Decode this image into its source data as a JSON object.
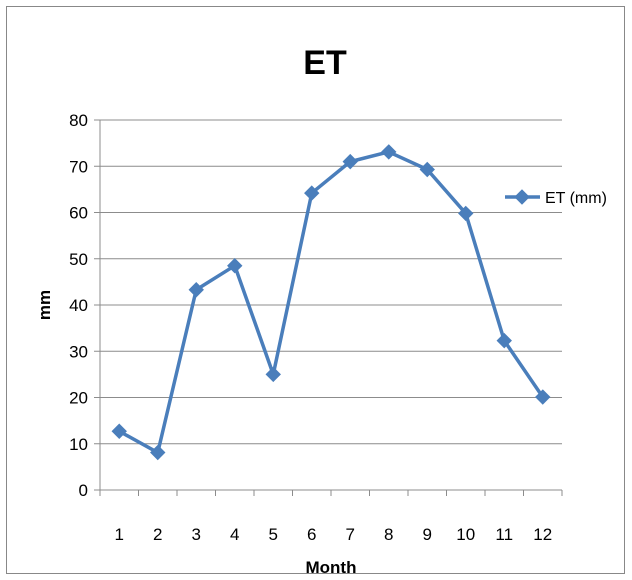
{
  "chart_data": {
    "type": "line",
    "title": "ET",
    "xlabel": "Month",
    "ylabel": "mm",
    "categories": [
      "1",
      "2",
      "3",
      "4",
      "5",
      "6",
      "7",
      "8",
      "9",
      "10",
      "11",
      "12"
    ],
    "series": [
      {
        "name": "ET (mm)",
        "color": "#4a7ebb",
        "marker": "diamond",
        "values": [
          12.7,
          8.1,
          43.3,
          48.5,
          25.0,
          64.2,
          71.0,
          73.1,
          69.3,
          59.8,
          32.3,
          20.1
        ]
      }
    ],
    "ylim": [
      0,
      80
    ],
    "yticks": [
      0,
      10,
      20,
      30,
      40,
      50,
      60,
      70,
      80
    ],
    "grid": true,
    "legend_position": "right"
  }
}
